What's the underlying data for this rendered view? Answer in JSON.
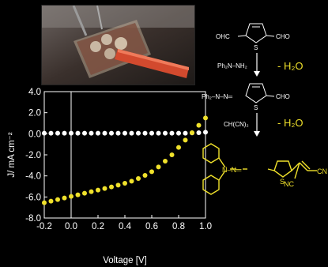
{
  "chart_data": {
    "type": "scatter",
    "xlabel": "Voltage [V]",
    "ylabel": "J/ mA cm⁻²",
    "xlim": [
      -0.2,
      1.0
    ],
    "ylim": [
      -8.0,
      4.0
    ],
    "x_ticks": [
      "-0.2",
      "0.0",
      "0.2",
      "0.4",
      "0.6",
      "0.8",
      "1.0"
    ],
    "y_ticks": [
      "4.0",
      "2.0",
      "0.0",
      "-2.0",
      "-4.0",
      "-6.0",
      "-8.0"
    ],
    "grid": false,
    "series": [
      {
        "role": "dark",
        "color": "#ffffff",
        "x": [
          -0.2,
          -0.15,
          -0.1,
          -0.05,
          0.0,
          0.05,
          0.1,
          0.15,
          0.2,
          0.25,
          0.3,
          0.35,
          0.4,
          0.45,
          0.5,
          0.55,
          0.6,
          0.65,
          0.7,
          0.75,
          0.8,
          0.85,
          0.9,
          0.95,
          1.0
        ],
        "y": [
          0.05,
          0.05,
          0.05,
          0.05,
          0.05,
          0.05,
          0.05,
          0.05,
          0.05,
          0.05,
          0.05,
          0.05,
          0.05,
          0.05,
          0.05,
          0.05,
          0.05,
          0.05,
          0.05,
          0.05,
          0.05,
          0.05,
          0.08,
          0.1,
          0.15
        ]
      },
      {
        "role": "illuminated",
        "color": "#f0e12b",
        "x": [
          -0.2,
          -0.15,
          -0.1,
          -0.05,
          0.0,
          0.05,
          0.1,
          0.15,
          0.2,
          0.25,
          0.3,
          0.35,
          0.4,
          0.45,
          0.5,
          0.55,
          0.6,
          0.65,
          0.7,
          0.75,
          0.8,
          0.85,
          0.9,
          0.95,
          1.0
        ],
        "y": [
          -6.55,
          -6.4,
          -6.25,
          -6.1,
          -5.95,
          -5.8,
          -5.65,
          -5.5,
          -5.35,
          -5.2,
          -5.05,
          -4.88,
          -4.7,
          -4.5,
          -4.25,
          -3.95,
          -3.6,
          -3.15,
          -2.6,
          -2.0,
          -1.3,
          -0.6,
          0.1,
          0.8,
          1.5
        ]
      }
    ]
  },
  "scheme": {
    "top_left": "OHC",
    "top_right": "CHO",
    "top_S": "S",
    "reagent_1": "Ph₂N–NH₂",
    "minus_h2o_1": "- H₂O",
    "mid_left": "Ph₂–N–N═",
    "mid_right": "CHO",
    "mid_S": "S",
    "reagent_2": "CH(CN)₂",
    "minus_h2o_2": "- H₂O",
    "prod_hydrazone": "N–N═",
    "prod_S": "S",
    "prod_cn1": "CN",
    "prod_cn2": "NC"
  },
  "colors": {
    "background": "#000000",
    "accent": "#f0e12b",
    "dark_series": "#ffffff"
  }
}
